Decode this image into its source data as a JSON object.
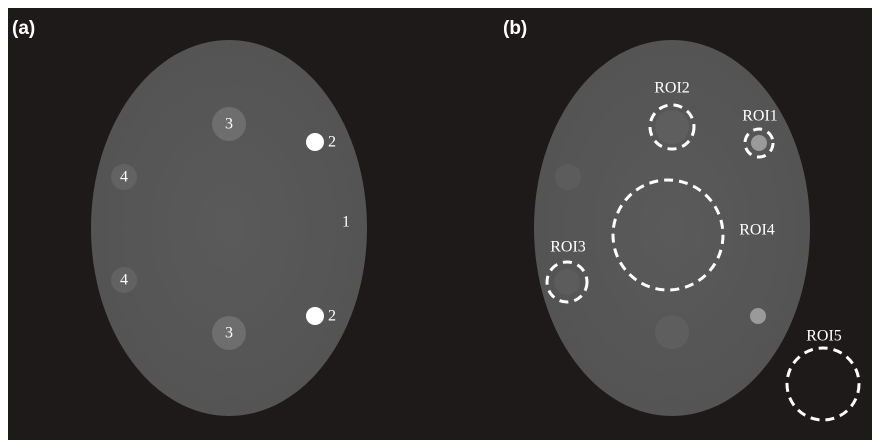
{
  "panels": [
    {
      "label": "(a)",
      "annotations": [
        "3",
        "2",
        "4",
        "1",
        "4",
        "3",
        "2"
      ]
    },
    {
      "label": "(b)",
      "annotations": [
        "ROI2",
        "ROI1",
        "ROI4",
        "ROI3",
        "ROI5"
      ]
    }
  ]
}
